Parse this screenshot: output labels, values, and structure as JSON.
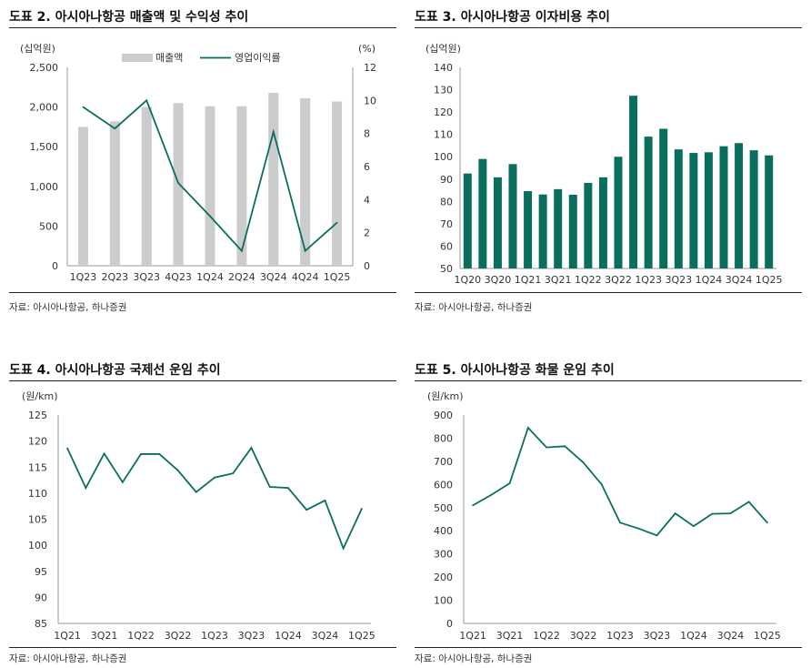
{
  "colors": {
    "green": "#0a6e5f",
    "gray": "#cccccc",
    "axis": "#9a9a9a"
  },
  "chart_data": [
    {
      "type": "bar+line",
      "title": "도표 2. 아시아나항공 매출액 및 수익성 추이",
      "source": "자료: 아시아나항공, 하나증권",
      "categories": [
        "1Q23",
        "2Q23",
        "3Q23",
        "4Q23",
        "1Q24",
        "2Q24",
        "3Q24",
        "4Q24",
        "1Q25"
      ],
      "series": [
        {
          "name": "매출액",
          "type": "bar",
          "axis": "left",
          "values": [
            1750,
            1820,
            2000,
            2050,
            2010,
            2010,
            2180,
            2110,
            2070
          ]
        },
        {
          "name": "영업이익률",
          "type": "line",
          "axis": "right",
          "values": [
            9.6,
            8.3,
            10.0,
            5.0,
            3.0,
            0.9,
            8.1,
            0.9,
            2.6
          ]
        }
      ],
      "ylabel_left": "(십억원)",
      "ylabel_right": "(%)",
      "ylim_left": [
        0,
        2500
      ],
      "yticks_left": [
        "0",
        "500",
        "1,000",
        "1,500",
        "2,000",
        "2,500"
      ],
      "ylim_right": [
        0,
        12
      ],
      "yticks_right": [
        "0",
        "2",
        "4",
        "6",
        "8",
        "10",
        "12"
      ],
      "legend_position": "top-center"
    },
    {
      "type": "bar",
      "title": "도표 3. 아시아나항공 이자비용 추이",
      "source": "자료: 아시아나항공, 하나증권",
      "categories": [
        "1Q20",
        "2Q20",
        "3Q20",
        "4Q20",
        "1Q21",
        "2Q21",
        "3Q21",
        "4Q21",
        "1Q22",
        "2Q22",
        "3Q22",
        "4Q22",
        "1Q23",
        "2Q23",
        "3Q23",
        "4Q23",
        "1Q24",
        "2Q24",
        "3Q24",
        "4Q24",
        "1Q25"
      ],
      "xticks": [
        "1Q20",
        "3Q20",
        "1Q21",
        "3Q21",
        "1Q22",
        "3Q22",
        "1Q23",
        "3Q23",
        "1Q24",
        "3Q24",
        "1Q25"
      ],
      "values": [
        92.5,
        99.0,
        90.8,
        96.7,
        84.6,
        83.1,
        85.5,
        83.0,
        88.3,
        90.8,
        100.0,
        127.3,
        109.0,
        112.5,
        103.3,
        101.7,
        102.0,
        104.7,
        106.1,
        102.9,
        100.6
      ],
      "ylabel": "(십억원)",
      "ylim": [
        50,
        140
      ],
      "yticks": [
        "50",
        "60",
        "70",
        "80",
        "90",
        "100",
        "110",
        "120",
        "130",
        "140"
      ]
    },
    {
      "type": "line",
      "title": "도표 4. 아시아나항공 국제선 운임 추이",
      "source": "자료: 아시아나항공, 하나증권",
      "categories": [
        "1Q21",
        "2Q21",
        "3Q21",
        "4Q21",
        "1Q22",
        "2Q22",
        "3Q22",
        "4Q22",
        "1Q23",
        "2Q23",
        "3Q23",
        "4Q23",
        "1Q24",
        "2Q24",
        "3Q24",
        "4Q24",
        "1Q25"
      ],
      "xticks": [
        "1Q21",
        "3Q21",
        "1Q22",
        "3Q22",
        "1Q23",
        "3Q23",
        "1Q24",
        "3Q24",
        "1Q25"
      ],
      "values": [
        118.6,
        111.0,
        117.6,
        112.1,
        117.5,
        117.5,
        114.4,
        110.2,
        113.0,
        113.8,
        118.7,
        111.2,
        111.0,
        106.8,
        108.6,
        99.4,
        107.0
      ],
      "ylabel": "(원/km)",
      "ylim": [
        85,
        125
      ],
      "yticks": [
        "85",
        "90",
        "95",
        "100",
        "105",
        "110",
        "115",
        "120",
        "125"
      ]
    },
    {
      "type": "line",
      "title": "도표 5. 아시아나항공 화물 운임 추이",
      "source": "자료: 아시아나항공, 하나증권",
      "categories": [
        "1Q21",
        "2Q21",
        "3Q21",
        "4Q21",
        "1Q22",
        "2Q22",
        "3Q22",
        "4Q22",
        "1Q23",
        "2Q23",
        "3Q23",
        "4Q23",
        "1Q24",
        "2Q24",
        "3Q24",
        "4Q24",
        "1Q25"
      ],
      "xticks": [
        "1Q21",
        "3Q21",
        "1Q22",
        "3Q22",
        "1Q23",
        "3Q23",
        "1Q24",
        "3Q24",
        "1Q25"
      ],
      "values": [
        510,
        555,
        605,
        845,
        760,
        765,
        695,
        600,
        435,
        410,
        380,
        475,
        420,
        473,
        475,
        525,
        435
      ],
      "ylabel": "(원/km)",
      "ylim": [
        0,
        900
      ],
      "yticks": [
        "0",
        "100",
        "200",
        "300",
        "400",
        "500",
        "600",
        "700",
        "800",
        "900"
      ]
    }
  ]
}
